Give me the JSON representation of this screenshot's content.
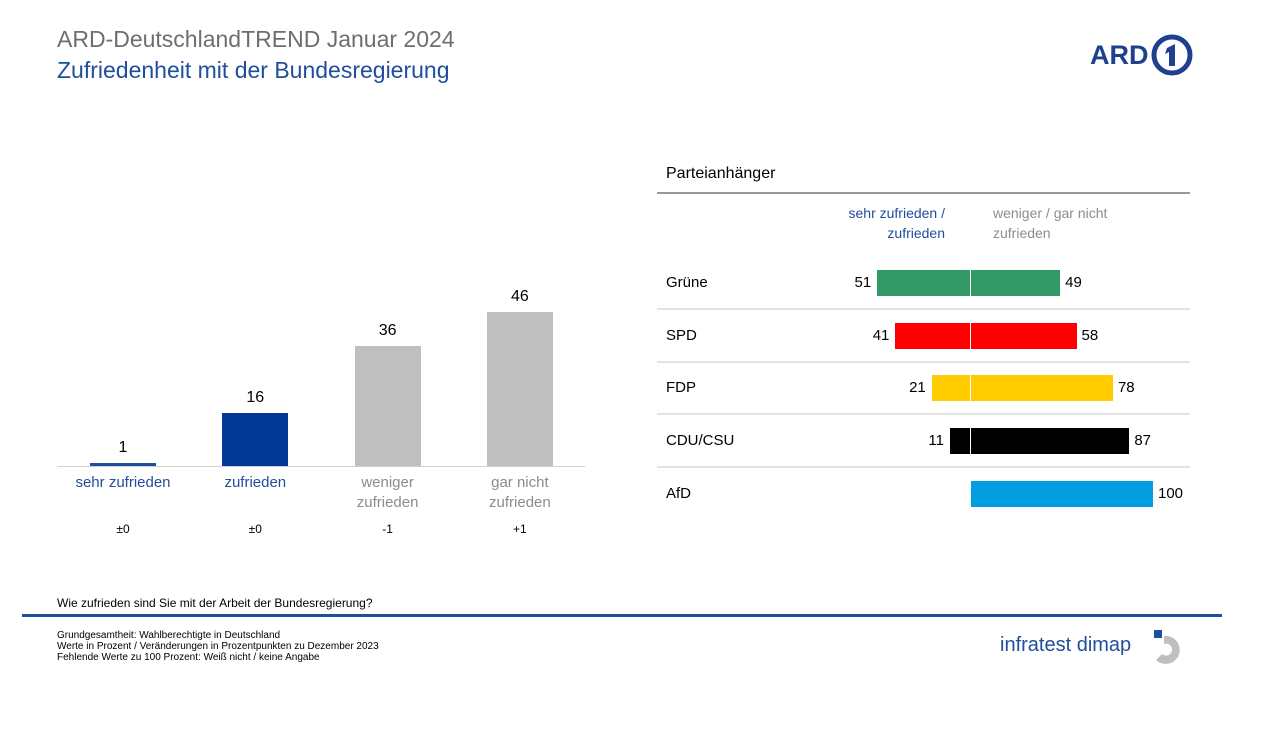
{
  "header": {
    "title": "ARD-DeutschlandTREND Januar 2024",
    "subtitle": "Zufriedenheit mit der Bundesregierung",
    "logo": "ARD"
  },
  "chart_data": [
    {
      "type": "bar",
      "categories": [
        "sehr zufrieden",
        "zufrieden",
        "weniger zufrieden",
        "gar nicht zufrieden"
      ],
      "values": [
        1,
        16,
        36,
        46
      ],
      "colors": [
        "#1f4e9c",
        "#003a96",
        "#bfbfbf",
        "#bfbfbf"
      ],
      "label_colors": [
        "#1f4e9c",
        "#1f4e9c",
        "#8c8c8c",
        "#8c8c8c"
      ],
      "changes": [
        "±0",
        "±0",
        "-1",
        "+1"
      ],
      "ylim": [
        0,
        50
      ]
    },
    {
      "type": "diverging_bar",
      "title": "Parteianhänger",
      "categories": [
        "Grüne",
        "SPD",
        "FDP",
        "CDU/CSU",
        "AfD"
      ],
      "colors": [
        "#339966",
        "#ff0000",
        "#ffcc00",
        "#000000",
        "#009ee0"
      ],
      "series": [
        {
          "name": "sehr zufrieden / zufrieden",
          "color": "#1f4e9c",
          "values": [
            51,
            41,
            21,
            11,
            null
          ]
        },
        {
          "name": "weniger / gar nicht zufrieden",
          "color": "#8c8c8c",
          "values": [
            49,
            58,
            78,
            87,
            100
          ]
        }
      ],
      "xlim": [
        0,
        100
      ]
    }
  ],
  "question": "Wie zufrieden sind Sie mit der Arbeit der Bundesregierung?",
  "footnotes": [
    "Grundgesamtheit: Wahlberechtigte in Deutschland",
    "Werte in Prozent / Veränderungen in Prozentpunkten zu Dezember 2023",
    "Fehlende Werte zu 100 Prozent: Weiß nicht / keine Angabe"
  ],
  "footer_logo": "infratest dimap"
}
